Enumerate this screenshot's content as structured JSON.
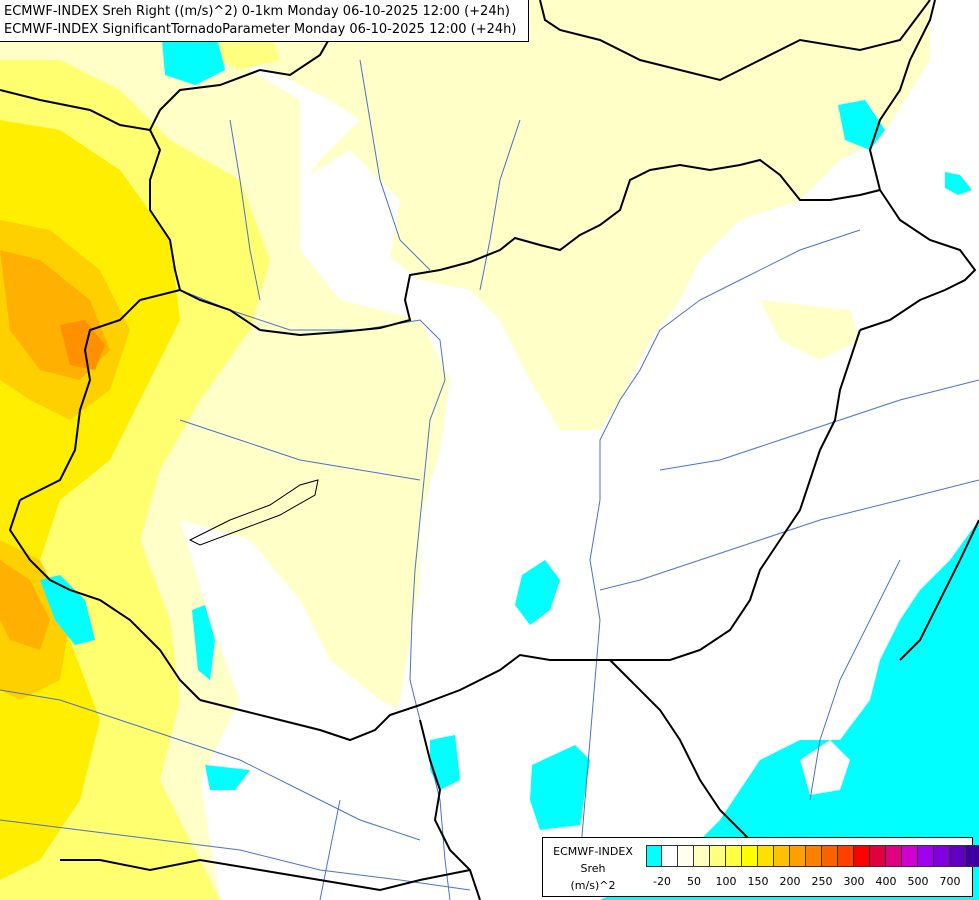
{
  "title": {
    "line1": "ECMWF-INDEX Sreh Right ((m/s)^2) 0-1km Monday 06-10-2025 12:00 (+24h)",
    "line2": "ECMWF-INDEX SignificantTornadoParameter Monday 06-10-2025 12:00 (+24h)"
  },
  "legend": {
    "source": "ECMWF-INDEX",
    "variable": "Sreh",
    "unit": "(m/s)^2",
    "colors": [
      "#00ffff",
      "#ffffff",
      "#fffff0",
      "#ffffc0",
      "#ffff80",
      "#ffff40",
      "#ffff00",
      "#ffe000",
      "#ffc000",
      "#ffa000",
      "#ff8000",
      "#ff6000",
      "#ff4000",
      "#ff0000",
      "#e00040",
      "#e00080",
      "#d000d0",
      "#a000f0",
      "#8000e0",
      "#6000c0",
      "#4000a0",
      "#000080"
    ],
    "ticks": [
      {
        "label": "-20",
        "index": 1
      },
      {
        "label": "50",
        "index": 3
      },
      {
        "label": "100",
        "index": 5
      },
      {
        "label": "150",
        "index": 7
      },
      {
        "label": "200",
        "index": 9
      },
      {
        "label": "250",
        "index": 11
      },
      {
        "label": "300",
        "index": 13
      },
      {
        "label": "400",
        "index": 15
      },
      {
        "label": "500",
        "index": 17
      },
      {
        "label": "700",
        "index": 19
      }
    ]
  }
}
